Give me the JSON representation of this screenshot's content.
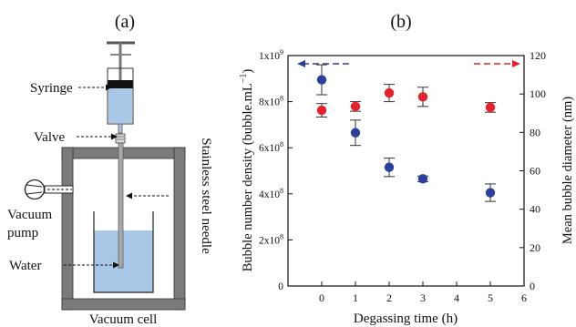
{
  "panel_a": {
    "label": "(a)",
    "labels": {
      "syringe": "Syringe",
      "valve": "Valve",
      "vacuum": "Vacuum",
      "pump": "pump",
      "water": "Water",
      "needle": "Stainless steel needle",
      "cell": "Vacuum cell"
    },
    "colors": {
      "water": "#a9c7e6",
      "wall": "#7b7b7b",
      "plunger": "#111111"
    }
  },
  "panel_b": {
    "label": "(b)"
  },
  "chart_data": {
    "type": "scatter",
    "xlabel": "Degassing time (h)",
    "ylabel_left": "Bubble number density (bubble.mL",
    "ylabel_left_sup": "−1",
    "ylabel_left_close": ")",
    "ylabel_right": "Mean bubble diameter (nm)",
    "xlim": [
      -1,
      6
    ],
    "xticks": [
      "0",
      "1",
      "2",
      "3",
      "4",
      "5",
      "6"
    ],
    "xtick_values": [
      0,
      1,
      2,
      3,
      4,
      5,
      6
    ],
    "ylim_left": [
      0,
      1000000000
    ],
    "yticks_left": [
      {
        "value": 0,
        "base": "0",
        "exp": ""
      },
      {
        "value": 200000000,
        "base": "2x10",
        "exp": "8"
      },
      {
        "value": 400000000,
        "base": "4x10",
        "exp": "8"
      },
      {
        "value": 600000000,
        "base": "6x10",
        "exp": "8"
      },
      {
        "value": 800000000,
        "base": "8x10",
        "exp": "8"
      },
      {
        "value": 1000000000,
        "base": "1x10",
        "exp": "9"
      }
    ],
    "ylim_right": [
      0,
      120
    ],
    "yticks_right": [
      "0",
      "20",
      "40",
      "60",
      "80",
      "100",
      "120"
    ],
    "ytick_right_values": [
      0,
      20,
      40,
      60,
      80,
      100,
      120
    ],
    "series": [
      {
        "axis": "left",
        "color": "#2b3f9e",
        "arrow_direction": "left",
        "x": [
          0,
          1,
          2,
          3,
          5
        ],
        "y": [
          895000000,
          665000000,
          515000000,
          465000000,
          405000000
        ],
        "err": [
          65000000,
          55000000,
          40000000,
          12000000,
          38000000
        ]
      },
      {
        "axis": "right",
        "color": "#e8202a",
        "arrow_direction": "right",
        "x": [
          0,
          1,
          2,
          3,
          5
        ],
        "y": [
          91.5,
          93.5,
          100.5,
          98.5,
          93.0
        ],
        "err": [
          3.5,
          2.5,
          4.5,
          5.0,
          2.5
        ]
      }
    ]
  }
}
